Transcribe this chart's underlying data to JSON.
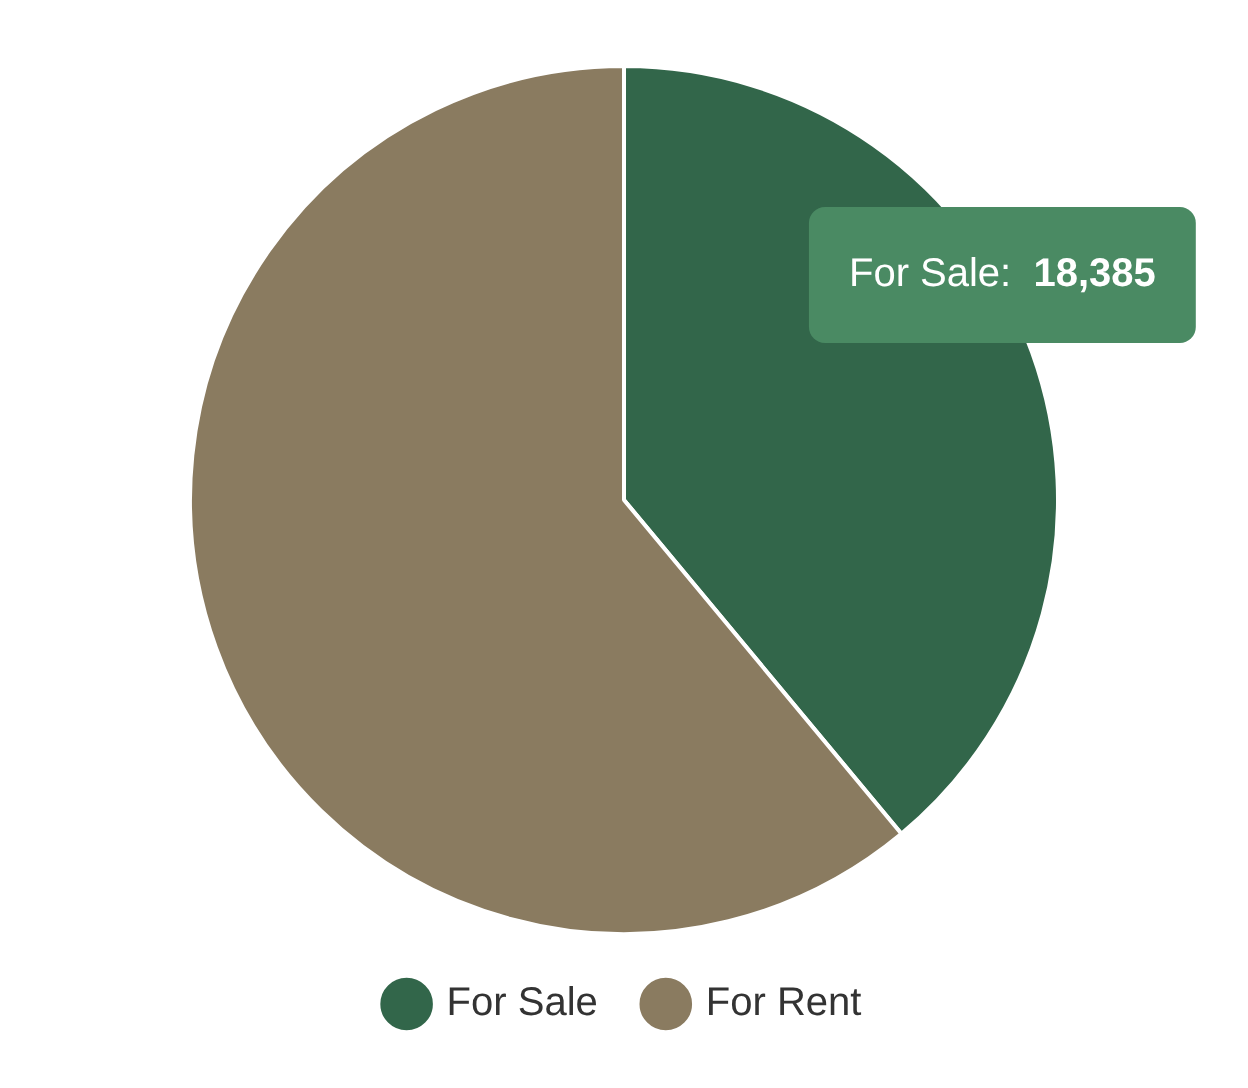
{
  "chart_data": {
    "type": "pie",
    "categories": [
      "For Sale",
      "For Rent"
    ],
    "values": [
      18385,
      28800
    ],
    "colors": [
      "#32664a",
      "#8a7b60"
    ],
    "value_labels": [
      "For Sale:  18,385",
      null
    ],
    "legend": "bottom"
  }
}
